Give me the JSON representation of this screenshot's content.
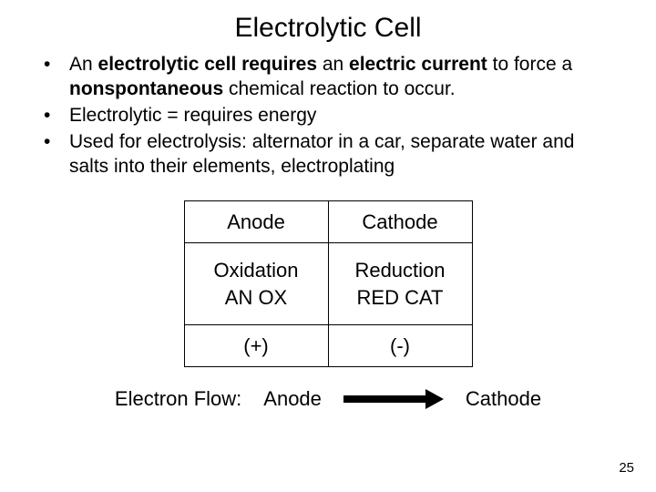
{
  "title": "Electrolytic Cell",
  "bullets": [
    {
      "html": "An <b>electrolytic cell</b> <b>requires</b> an <b>electric current</b> to force a <b>nonspontaneous</b> chemical reaction to occur."
    },
    {
      "html": "Electrolytic = requires energy"
    },
    {
      "html": "Used for electrolysis:  alternator in a car, separate water and salts into their elements, electroplating"
    }
  ],
  "table": {
    "head": [
      "Anode",
      "Cathode"
    ],
    "mid": [
      "Oxidation<br>AN OX",
      "Reduction<br>RED CAT"
    ],
    "sign": [
      "(+)",
      "(-)"
    ]
  },
  "flow": {
    "label": "Electron Flow:",
    "from": "Anode",
    "to": "Cathode"
  },
  "pagenum": "25",
  "colors": {
    "text": "#000000",
    "background": "#ffffff",
    "border": "#000000"
  }
}
